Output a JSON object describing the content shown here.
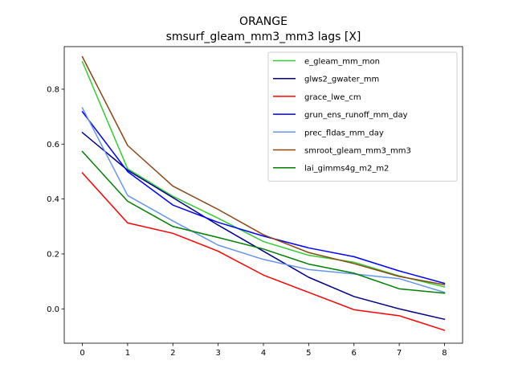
{
  "chart_data": {
    "type": "line",
    "title": "ORANGE",
    "subtitle": "smsurf_gleam_mm3_mm3 lags [X]",
    "xlabel": "",
    "ylabel": "",
    "x": [
      0,
      1,
      2,
      3,
      4,
      5,
      6,
      7,
      8
    ],
    "xlim": [
      -0.4,
      8.4
    ],
    "ylim": [
      -0.125,
      0.955
    ],
    "xticks": [
      "0",
      "1",
      "2",
      "3",
      "4",
      "5",
      "6",
      "7",
      "8"
    ],
    "yticks": [
      {
        "value": 0.0,
        "label": "0.0"
      },
      {
        "value": 0.2,
        "label": "0.2"
      },
      {
        "value": 0.4,
        "label": "0.4"
      },
      {
        "value": 0.6,
        "label": "0.6"
      },
      {
        "value": 0.8,
        "label": "0.8"
      }
    ],
    "grid": false,
    "legend_position": "top-right",
    "series": [
      {
        "name": "e_gleam_mm_mon",
        "color": "#32cd32",
        "values": [
          0.9,
          0.51,
          0.41,
          0.33,
          0.245,
          0.195,
          0.17,
          0.12,
          0.08
        ]
      },
      {
        "name": "glws2_gwater_mm",
        "color": "#00008b",
        "values": [
          0.642,
          0.505,
          0.405,
          0.305,
          0.21,
          0.115,
          0.045,
          0.0,
          -0.038
        ]
      },
      {
        "name": "grace_lwe_cm",
        "color": "#ff0000",
        "values": [
          0.495,
          0.313,
          0.275,
          0.21,
          0.123,
          0.06,
          -0.003,
          -0.025,
          -0.078
        ]
      },
      {
        "name": "grun_ens_runoff_mm_day",
        "color": "#0000ff",
        "values": [
          0.718,
          0.5,
          0.378,
          0.315,
          0.265,
          0.222,
          0.19,
          0.138,
          0.093
        ]
      },
      {
        "name": "prec_fldas_mm_day",
        "color": "#6495ed",
        "values": [
          0.732,
          0.413,
          0.32,
          0.232,
          0.18,
          0.143,
          0.127,
          0.11,
          0.06
        ]
      },
      {
        "name": "smroot_gleam_mm3_mm3",
        "color": "#8b4513",
        "values": [
          0.918,
          0.595,
          0.447,
          0.362,
          0.27,
          0.205,
          0.165,
          0.118,
          0.088
        ]
      },
      {
        "name": "lai_gimms4g_m2_m2",
        "color": "#008000",
        "values": [
          0.573,
          0.392,
          0.3,
          0.26,
          0.218,
          0.163,
          0.13,
          0.073,
          0.057
        ]
      }
    ]
  }
}
